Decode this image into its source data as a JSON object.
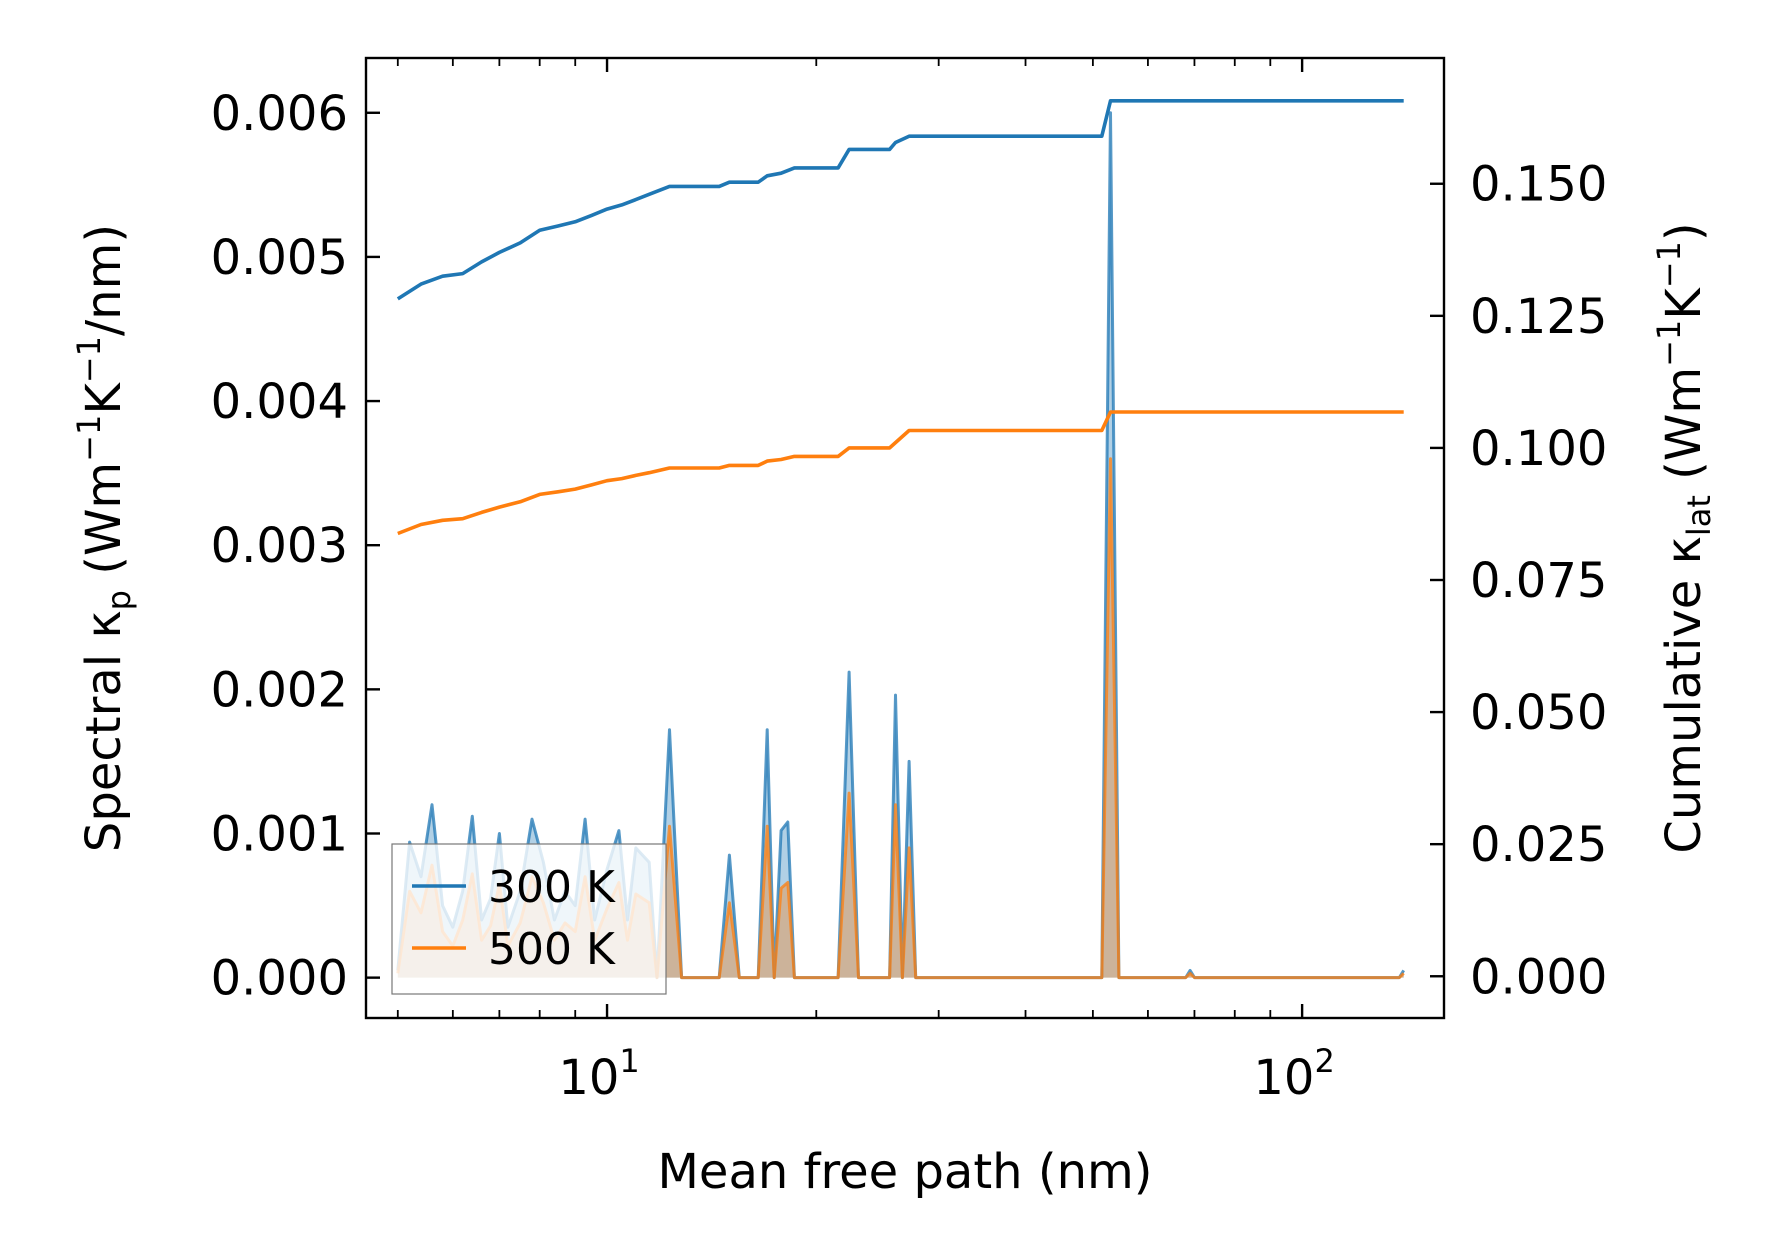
{
  "chart_data": {
    "type": "line",
    "xlabel": "Mean free path (nm)",
    "ylabel_left": {
      "base": "Spectral κ",
      "sub": "p",
      "pre_unit": " (Wm",
      "sup1": "−1",
      "mid": "K",
      "sup2": "−1",
      "post": "/nm)"
    },
    "ylabel_right": {
      "base": "Cumulative κ",
      "sub": "lat",
      "pre_unit": " (Wm",
      "sup1": "−1",
      "mid": "K",
      "sup2": "−1",
      "post": ")"
    },
    "x_scale": "log",
    "xlim": [
      4.5,
      160
    ],
    "ylim_left": [
      -0.00028,
      0.00638
    ],
    "ylim_right": [
      -0.0079,
      0.1738
    ],
    "x_ticks": [
      {
        "label_base": "10",
        "label_exp": "1",
        "value": 10
      },
      {
        "label_base": "10",
        "label_exp": "2",
        "value": 100
      }
    ],
    "y_ticks_left": [
      "0.000",
      "0.001",
      "0.002",
      "0.003",
      "0.004",
      "0.005",
      "0.006"
    ],
    "y_ticks_left_values": [
      0,
      0.001,
      0.002,
      0.003,
      0.004,
      0.005,
      0.006
    ],
    "y_ticks_right": [
      "0.000",
      "0.025",
      "0.050",
      "0.075",
      "0.100",
      "0.125",
      "0.150"
    ],
    "y_ticks_right_values": [
      0,
      0.025,
      0.05,
      0.075,
      0.1,
      0.125,
      0.15
    ],
    "legend": {
      "location": "lower-left",
      "entries": [
        "300 K",
        "500 K"
      ]
    },
    "series": [
      {
        "name": "300 K",
        "color": "#1f77b4",
        "spectral": [
          [
            5.0,
            5e-05
          ],
          [
            5.2,
            0.00094
          ],
          [
            5.4,
            0.0007
          ],
          [
            5.6,
            0.0012
          ],
          [
            5.8,
            0.0005
          ],
          [
            6.0,
            0.00035
          ],
          [
            6.2,
            0.0006
          ],
          [
            6.4,
            0.00112
          ],
          [
            6.6,
            0.0004
          ],
          [
            6.8,
            0.00055
          ],
          [
            7.0,
            0.001
          ],
          [
            7.2,
            0.00035
          ],
          [
            7.5,
            0.0006
          ],
          [
            7.8,
            0.0011
          ],
          [
            8.1,
            0.0008
          ],
          [
            8.4,
            0.0004
          ],
          [
            8.7,
            0.0006
          ],
          [
            9.0,
            0.0005
          ],
          [
            9.3,
            0.0011
          ],
          [
            9.6,
            0.0004
          ],
          [
            10.0,
            0.00075
          ],
          [
            10.4,
            0.00102
          ],
          [
            10.7,
            0.0004
          ],
          [
            11.0,
            0.0009
          ],
          [
            11.5,
            0.0008
          ],
          [
            11.8,
            0.0
          ],
          [
            12.3,
            0.00172
          ],
          [
            12.8,
            0.0
          ],
          [
            14.5,
            0.0
          ],
          [
            15.0,
            0.00085
          ],
          [
            15.5,
            0.0
          ],
          [
            16.5,
            0.0
          ],
          [
            17.0,
            0.00172
          ],
          [
            17.4,
            0.0
          ],
          [
            17.8,
            0.00102
          ],
          [
            18.2,
            0.00108
          ],
          [
            18.6,
            0.0
          ],
          [
            21.5,
            0.0
          ],
          [
            22.3,
            0.00212
          ],
          [
            23.0,
            0.0
          ],
          [
            25.5,
            0.0
          ],
          [
            26.0,
            0.00196
          ],
          [
            26.6,
            0.0
          ],
          [
            27.2,
            0.0015
          ],
          [
            27.8,
            0.0
          ],
          [
            51.5,
            0.0
          ],
          [
            53.0,
            0.006
          ],
          [
            54.5,
            0.0
          ],
          [
            68.0,
            0.0
          ],
          [
            69.0,
            5e-05
          ],
          [
            70.0,
            0.0
          ],
          [
            138.0,
            0.0
          ],
          [
            140.0,
            5e-05
          ]
        ],
        "cumulative": [
          [
            5.0,
            0.1282
          ],
          [
            5.4,
            0.131
          ],
          [
            5.8,
            0.1325
          ],
          [
            6.2,
            0.133
          ],
          [
            6.6,
            0.1352
          ],
          [
            7.0,
            0.137
          ],
          [
            7.5,
            0.1388
          ],
          [
            8.0,
            0.1412
          ],
          [
            8.5,
            0.142
          ],
          [
            9.0,
            0.1428
          ],
          [
            9.5,
            0.144
          ],
          [
            10.0,
            0.1452
          ],
          [
            10.5,
            0.146
          ],
          [
            11.0,
            0.147
          ],
          [
            11.5,
            0.148
          ],
          [
            12.3,
            0.1495
          ],
          [
            14.5,
            0.1495
          ],
          [
            15.0,
            0.1503
          ],
          [
            16.5,
            0.1503
          ],
          [
            17.0,
            0.1515
          ],
          [
            17.8,
            0.152
          ],
          [
            18.6,
            0.153
          ],
          [
            21.5,
            0.153
          ],
          [
            22.3,
            0.1565
          ],
          [
            25.5,
            0.1565
          ],
          [
            26.0,
            0.1578
          ],
          [
            27.2,
            0.159
          ],
          [
            51.5,
            0.159
          ],
          [
            53.0,
            0.1657
          ],
          [
            140.0,
            0.1657
          ]
        ]
      },
      {
        "name": "500 K",
        "color": "#ff7f0e",
        "spectral": [
          [
            5.0,
            3e-05
          ],
          [
            5.2,
            0.0006
          ],
          [
            5.4,
            0.00045
          ],
          [
            5.6,
            0.00078
          ],
          [
            5.8,
            0.00032
          ],
          [
            6.0,
            0.00022
          ],
          [
            6.2,
            0.0004
          ],
          [
            6.4,
            0.00072
          ],
          [
            6.6,
            0.00026
          ],
          [
            6.8,
            0.00036
          ],
          [
            7.0,
            0.00065
          ],
          [
            7.2,
            0.00022
          ],
          [
            7.5,
            0.00038
          ],
          [
            7.8,
            0.0007
          ],
          [
            8.1,
            0.00052
          ],
          [
            8.4,
            0.00026
          ],
          [
            8.7,
            0.00038
          ],
          [
            9.0,
            0.00032
          ],
          [
            9.3,
            0.0007
          ],
          [
            9.6,
            0.00026
          ],
          [
            10.0,
            0.00048
          ],
          [
            10.4,
            0.00066
          ],
          [
            10.7,
            0.00026
          ],
          [
            11.0,
            0.00058
          ],
          [
            11.5,
            0.00052
          ],
          [
            11.8,
            0.0
          ],
          [
            12.3,
            0.00105
          ],
          [
            12.8,
            0.0
          ],
          [
            14.5,
            0.0
          ],
          [
            15.0,
            0.00052
          ],
          [
            15.5,
            0.0
          ],
          [
            16.5,
            0.0
          ],
          [
            17.0,
            0.00105
          ],
          [
            17.4,
            0.0
          ],
          [
            17.8,
            0.00062
          ],
          [
            18.2,
            0.00066
          ],
          [
            18.6,
            0.0
          ],
          [
            21.5,
            0.0
          ],
          [
            22.3,
            0.00128
          ],
          [
            23.0,
            0.0
          ],
          [
            25.5,
            0.0
          ],
          [
            26.0,
            0.0012
          ],
          [
            26.6,
            0.0
          ],
          [
            27.2,
            0.0009
          ],
          [
            27.8,
            0.0
          ],
          [
            51.5,
            0.0
          ],
          [
            53.0,
            0.0036
          ],
          [
            54.5,
            0.0
          ],
          [
            68.0,
            0.0
          ],
          [
            69.0,
            3e-05
          ],
          [
            70.0,
            0.0
          ],
          [
            138.0,
            0.0
          ],
          [
            140.0,
            3e-05
          ]
        ],
        "cumulative": [
          [
            5.0,
            0.0838
          ],
          [
            5.4,
            0.0855
          ],
          [
            5.8,
            0.0863
          ],
          [
            6.2,
            0.0866
          ],
          [
            6.6,
            0.0878
          ],
          [
            7.0,
            0.0888
          ],
          [
            7.5,
            0.0898
          ],
          [
            8.0,
            0.0912
          ],
          [
            8.5,
            0.0917
          ],
          [
            9.0,
            0.0922
          ],
          [
            9.5,
            0.093
          ],
          [
            10.0,
            0.0938
          ],
          [
            10.5,
            0.0942
          ],
          [
            11.0,
            0.0948
          ],
          [
            11.5,
            0.0953
          ],
          [
            12.3,
            0.0962
          ],
          [
            14.5,
            0.0962
          ],
          [
            15.0,
            0.0967
          ],
          [
            16.5,
            0.0967
          ],
          [
            17.0,
            0.0975
          ],
          [
            17.8,
            0.0978
          ],
          [
            18.6,
            0.0984
          ],
          [
            21.5,
            0.0984
          ],
          [
            22.3,
            0.1
          ],
          [
            25.5,
            0.1
          ],
          [
            26.0,
            0.101
          ],
          [
            27.2,
            0.1033
          ],
          [
            51.5,
            0.1033
          ],
          [
            53.0,
            0.1068
          ],
          [
            140.0,
            0.1068
          ]
        ]
      }
    ]
  }
}
